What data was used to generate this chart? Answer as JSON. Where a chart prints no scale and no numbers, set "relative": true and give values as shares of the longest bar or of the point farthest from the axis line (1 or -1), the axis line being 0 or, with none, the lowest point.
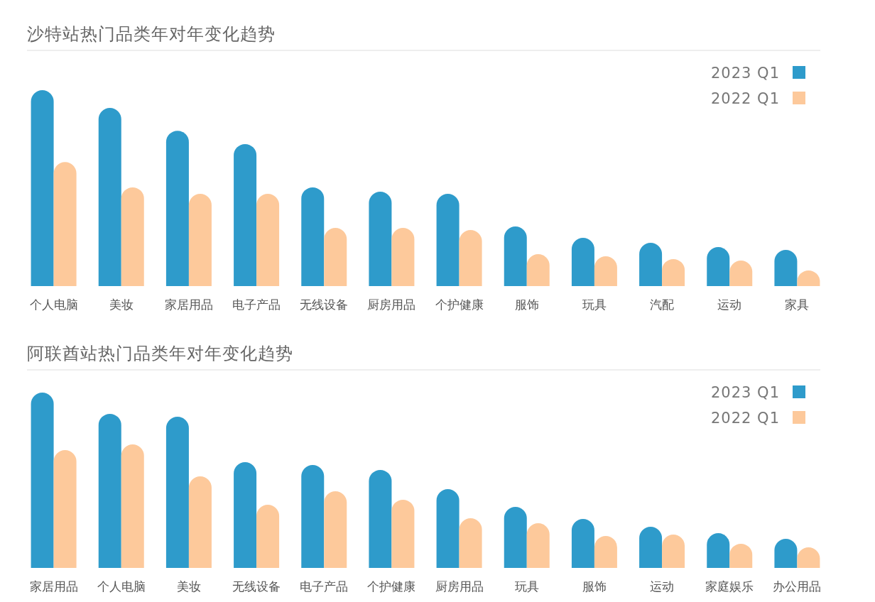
{
  "chart_data": [
    {
      "type": "bar",
      "title": "沙特站热门品类年对年变化趋势",
      "relative": true,
      "legend": "top right",
      "categories": [
        "个人电脑",
        "美妆",
        "家居用品",
        "电子产品",
        "无线设备",
        "厨房用品",
        "个护健康",
        "服饰",
        "玩具",
        "汽配",
        "运动",
        "家具"
      ],
      "series": [
        {
          "name": "2023 Q1",
          "color": "#2e9bcb",
          "values": [
            1,
            0.909,
            0.793,
            0.725,
            0.504,
            0.482,
            0.471,
            0.304,
            0.246,
            0.221,
            0.199,
            0.185
          ]
        },
        {
          "name": "2022 Q1",
          "color": "#fdc99b",
          "values": [
            0.633,
            0.504,
            0.471,
            0.471,
            0.297,
            0.297,
            0.286,
            0.163,
            0.152,
            0.138,
            0.13,
            0.08
          ]
        }
      ]
    },
    {
      "type": "bar",
      "title": "阿联酋站热门品类年对年变化趋势",
      "relative": true,
      "legend": "top right",
      "categories": [
        "家居用品",
        "个人电脑",
        "美妆",
        "无线设备",
        "电子产品",
        "个护健康",
        "厨房用品",
        "玩具",
        "服饰",
        "运动",
        "家庭娱乐",
        "办公用品"
      ],
      "series": [
        {
          "name": "2023 Q1",
          "color": "#2e9bcb",
          "values": [
            1,
            0.879,
            0.862,
            0.603,
            0.587,
            0.559,
            0.449,
            0.348,
            0.279,
            0.235,
            0.198,
            0.166
          ]
        },
        {
          "name": "2022 Q1",
          "color": "#fdc99b",
          "values": [
            0.672,
            0.704,
            0.522,
            0.36,
            0.437,
            0.389,
            0.283,
            0.255,
            0.182,
            0.19,
            0.138,
            0.117
          ]
        }
      ]
    }
  ]
}
